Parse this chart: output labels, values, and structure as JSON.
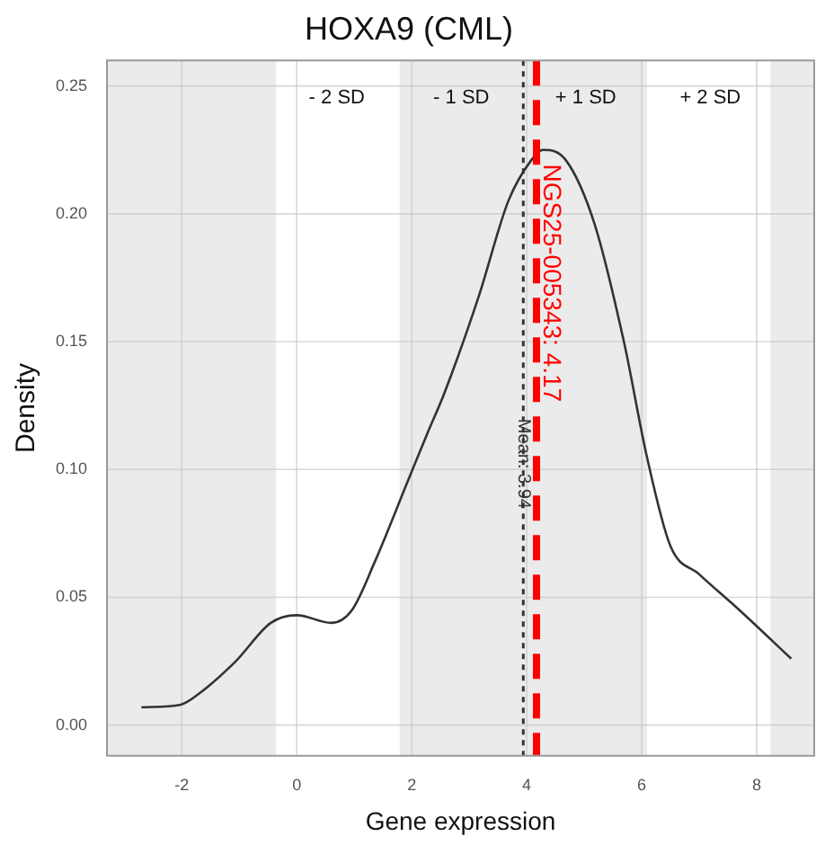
{
  "chart_data": {
    "type": "line",
    "title": "HOXA9 (CML)",
    "xlabel": "Gene expression",
    "ylabel": "Density",
    "x": [
      -2.7,
      -2.02,
      -1.66,
      -1.06,
      -0.45,
      0,
      0.6,
      0.96,
      1.36,
      1.96,
      2.27,
      2.57,
      3.17,
      3.68,
      4.08,
      4.28,
      4.68,
      5.18,
      5.69,
      6.09,
      6.5,
      7.0,
      7.7,
      8.6
    ],
    "series": [
      {
        "color": "#333333",
        "values": [
          0.007,
          0.008,
          0.013,
          0.025,
          0.04,
          0.043,
          0.04,
          0.045,
          0.064,
          0.097,
          0.114,
          0.13,
          0.168,
          0.205,
          0.221,
          0.225,
          0.221,
          0.196,
          0.15,
          0.105,
          0.07,
          0.059,
          0.045,
          0.026
        ]
      }
    ],
    "xlim": [
      -3.3,
      9.0
    ],
    "ylim": [
      -0.012,
      0.26
    ],
    "xticks": [
      -2,
      0,
      2,
      4,
      6,
      8
    ],
    "yticks": [
      {
        "value": 0,
        "label": "0.00"
      },
      {
        "value": 0.05,
        "label": "0.05"
      },
      {
        "value": 0.1,
        "label": "0.10"
      },
      {
        "value": 0.15,
        "label": "0.15"
      },
      {
        "value": 0.2,
        "label": "0.20"
      },
      {
        "value": 0.25,
        "label": "0.25"
      }
    ],
    "bands": [
      {
        "axis": "x",
        "from": -3.3,
        "to": -0.36,
        "color": "#ebebeb"
      },
      {
        "axis": "x",
        "from": 1.79,
        "to": 6.09,
        "color": "#ebebeb"
      },
      {
        "axis": "x",
        "from": 8.24,
        "to": 9.0,
        "color": "#ebebeb"
      }
    ],
    "ref_lines": [
      {
        "axis": "x",
        "value": 3.94,
        "label": "Mean: 3.94",
        "color": "#333333",
        "line_style": "dotted"
      },
      {
        "axis": "x",
        "value": 4.17,
        "label": "NGS25-005343: 4.17",
        "color": "#ff0000",
        "line_style": "dashed"
      }
    ],
    "annotations": [
      "- 2 SD",
      "- 1 SD",
      "+ 1 SD",
      "+ 2 SD"
    ],
    "grid": true,
    "legend": false,
    "marker": "none",
    "line_style": "solid"
  }
}
